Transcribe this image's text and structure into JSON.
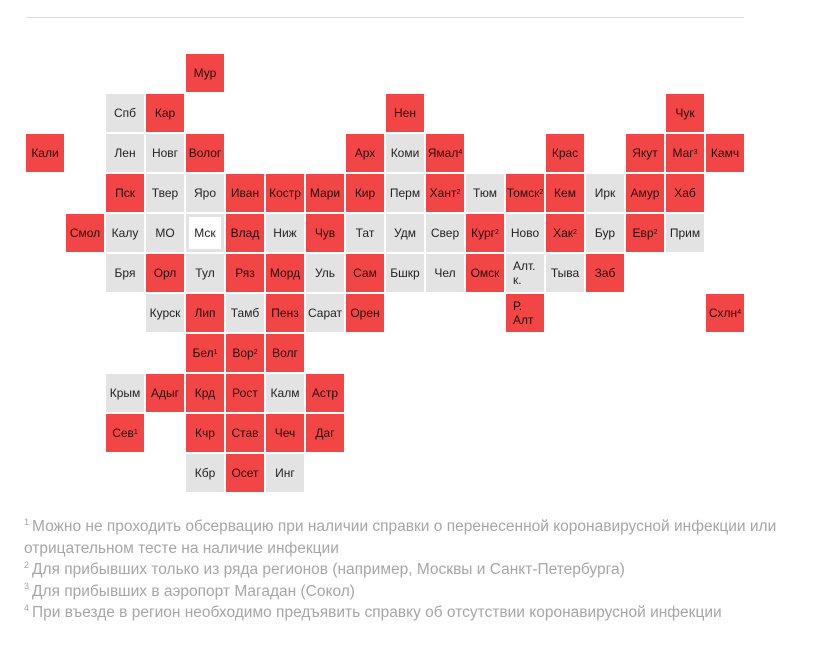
{
  "colors": {
    "restricted": "#f24646",
    "no_restrictions": "#e3e3e3",
    "highlight_outline": "#e3e3e3"
  },
  "regions": [
    {
      "label": "Мур",
      "fn": "",
      "status": "restricted",
      "col": 4,
      "row": 0
    },
    {
      "label": "Спб",
      "fn": "",
      "status": "no_restrictions",
      "col": 2,
      "row": 1
    },
    {
      "label": "Кар",
      "fn": "",
      "status": "restricted",
      "col": 3,
      "row": 1
    },
    {
      "label": "Нен",
      "fn": "",
      "status": "restricted",
      "col": 9,
      "row": 1
    },
    {
      "label": "Чук",
      "fn": "",
      "status": "restricted",
      "col": 16,
      "row": 1
    },
    {
      "label": "Кали",
      "fn": "",
      "status": "restricted",
      "col": 0,
      "row": 2
    },
    {
      "label": "Лен",
      "fn": "",
      "status": "no_restrictions",
      "col": 2,
      "row": 2
    },
    {
      "label": "Новг",
      "fn": "",
      "status": "no_restrictions",
      "col": 3,
      "row": 2
    },
    {
      "label": "Волог",
      "fn": "",
      "status": "restricted",
      "col": 4,
      "row": 2
    },
    {
      "label": "Арх",
      "fn": "",
      "status": "restricted",
      "col": 8,
      "row": 2
    },
    {
      "label": "Коми",
      "fn": "",
      "status": "no_restrictions",
      "col": 9,
      "row": 2
    },
    {
      "label": "Ямал",
      "fn": "4",
      "status": "restricted",
      "col": 10,
      "row": 2
    },
    {
      "label": "Крас",
      "fn": "",
      "status": "restricted",
      "col": 13,
      "row": 2
    },
    {
      "label": "Якут",
      "fn": "",
      "status": "restricted",
      "col": 15,
      "row": 2
    },
    {
      "label": "Маг",
      "fn": "3",
      "status": "restricted",
      "col": 16,
      "row": 2
    },
    {
      "label": "Камч",
      "fn": "",
      "status": "restricted",
      "col": 17,
      "row": 2
    },
    {
      "label": "Пск",
      "fn": "",
      "status": "restricted",
      "col": 2,
      "row": 3
    },
    {
      "label": "Твер",
      "fn": "",
      "status": "no_restrictions",
      "col": 3,
      "row": 3
    },
    {
      "label": "Яро",
      "fn": "",
      "status": "no_restrictions",
      "col": 4,
      "row": 3
    },
    {
      "label": "Иван",
      "fn": "",
      "status": "restricted",
      "col": 5,
      "row": 3
    },
    {
      "label": "Костр",
      "fn": "",
      "status": "restricted",
      "col": 6,
      "row": 3
    },
    {
      "label": "Мари",
      "fn": "",
      "status": "restricted",
      "col": 7,
      "row": 3
    },
    {
      "label": "Кир",
      "fn": "",
      "status": "restricted",
      "col": 8,
      "row": 3
    },
    {
      "label": "Перм",
      "fn": "",
      "status": "no_restrictions",
      "col": 9,
      "row": 3
    },
    {
      "label": "Хант",
      "fn": "2",
      "status": "restricted",
      "col": 10,
      "row": 3
    },
    {
      "label": "Тюм",
      "fn": "",
      "status": "no_restrictions",
      "col": 11,
      "row": 3
    },
    {
      "label": "Томск",
      "fn": "2",
      "status": "restricted",
      "col": 12,
      "row": 3
    },
    {
      "label": "Кем",
      "fn": "",
      "status": "restricted",
      "col": 13,
      "row": 3
    },
    {
      "label": "Ирк",
      "fn": "",
      "status": "no_restrictions",
      "col": 14,
      "row": 3
    },
    {
      "label": "Амур",
      "fn": "",
      "status": "restricted",
      "col": 15,
      "row": 3
    },
    {
      "label": "Хаб",
      "fn": "",
      "status": "restricted",
      "col": 16,
      "row": 3
    },
    {
      "label": "Смол",
      "fn": "",
      "status": "restricted",
      "col": 1,
      "row": 4
    },
    {
      "label": "Калу",
      "fn": "",
      "status": "no_restrictions",
      "col": 2,
      "row": 4
    },
    {
      "label": "МО",
      "fn": "",
      "status": "no_restrictions",
      "col": 3,
      "row": 4
    },
    {
      "label": "Мск",
      "fn": "",
      "status": "highlight",
      "col": 4,
      "row": 4
    },
    {
      "label": "Влад",
      "fn": "",
      "status": "restricted",
      "col": 5,
      "row": 4
    },
    {
      "label": "Ниж",
      "fn": "",
      "status": "no_restrictions",
      "col": 6,
      "row": 4
    },
    {
      "label": "Чув",
      "fn": "",
      "status": "restricted",
      "col": 7,
      "row": 4
    },
    {
      "label": "Тат",
      "fn": "",
      "status": "no_restrictions",
      "col": 8,
      "row": 4
    },
    {
      "label": "Удм",
      "fn": "",
      "status": "no_restrictions",
      "col": 9,
      "row": 4
    },
    {
      "label": "Свер",
      "fn": "",
      "status": "no_restrictions",
      "col": 10,
      "row": 4
    },
    {
      "label": "Кург",
      "fn": "2",
      "status": "restricted",
      "col": 11,
      "row": 4
    },
    {
      "label": "Ново",
      "fn": "",
      "status": "no_restrictions",
      "col": 12,
      "row": 4
    },
    {
      "label": "Хак",
      "fn": "2",
      "status": "restricted",
      "col": 13,
      "row": 4
    },
    {
      "label": "Бур",
      "fn": "",
      "status": "no_restrictions",
      "col": 14,
      "row": 4
    },
    {
      "label": "Евр",
      "fn": "2",
      "status": "restricted",
      "col": 15,
      "row": 4
    },
    {
      "label": "Прим",
      "fn": "",
      "status": "no_restrictions",
      "col": 16,
      "row": 4
    },
    {
      "label": "Бря",
      "fn": "",
      "status": "no_restrictions",
      "col": 2,
      "row": 5
    },
    {
      "label": "Орл",
      "fn": "",
      "status": "restricted",
      "col": 3,
      "row": 5
    },
    {
      "label": "Тул",
      "fn": "",
      "status": "no_restrictions",
      "col": 4,
      "row": 5
    },
    {
      "label": "Ряз",
      "fn": "",
      "status": "restricted",
      "col": 5,
      "row": 5
    },
    {
      "label": "Морд",
      "fn": "",
      "status": "restricted",
      "col": 6,
      "row": 5
    },
    {
      "label": "Уль",
      "fn": "",
      "status": "no_restrictions",
      "col": 7,
      "row": 5
    },
    {
      "label": "Сам",
      "fn": "",
      "status": "restricted",
      "col": 8,
      "row": 5
    },
    {
      "label": "Бшкр",
      "fn": "",
      "status": "no_restrictions",
      "col": 9,
      "row": 5
    },
    {
      "label": "Чел",
      "fn": "",
      "status": "no_restrictions",
      "col": 10,
      "row": 5
    },
    {
      "label": "Омск",
      "fn": "",
      "status": "restricted",
      "col": 11,
      "row": 5
    },
    {
      "label": "Алт. к.",
      "fn": "",
      "status": "no_restrictions",
      "col": 12,
      "row": 5,
      "wrap": true
    },
    {
      "label": "Тыва",
      "fn": "",
      "status": "no_restrictions",
      "col": 13,
      "row": 5
    },
    {
      "label": "Заб",
      "fn": "",
      "status": "restricted",
      "col": 14,
      "row": 5
    },
    {
      "label": "Курск",
      "fn": "",
      "status": "no_restrictions",
      "col": 3,
      "row": 6
    },
    {
      "label": "Лип",
      "fn": "",
      "status": "restricted",
      "col": 4,
      "row": 6
    },
    {
      "label": "Тамб",
      "fn": "",
      "status": "no_restrictions",
      "col": 5,
      "row": 6
    },
    {
      "label": "Пенз",
      "fn": "",
      "status": "restricted",
      "col": 6,
      "row": 6
    },
    {
      "label": "Сарат",
      "fn": "",
      "status": "no_restrictions",
      "col": 7,
      "row": 6
    },
    {
      "label": "Орен",
      "fn": "",
      "status": "restricted",
      "col": 8,
      "row": 6
    },
    {
      "label": "Р. Алт",
      "fn": "",
      "status": "restricted",
      "col": 12,
      "row": 6,
      "wrap": true
    },
    {
      "label": "Схлн",
      "fn": "4",
      "status": "restricted",
      "col": 17,
      "row": 6
    },
    {
      "label": "Бел",
      "fn": "1",
      "status": "restricted",
      "col": 4,
      "row": 7
    },
    {
      "label": "Вор",
      "fn": "2",
      "status": "restricted",
      "col": 5,
      "row": 7
    },
    {
      "label": "Волг",
      "fn": "",
      "status": "restricted",
      "col": 6,
      "row": 7
    },
    {
      "label": "Крым",
      "fn": "",
      "status": "no_restrictions",
      "col": 2,
      "row": 8
    },
    {
      "label": "Адыг",
      "fn": "",
      "status": "restricted",
      "col": 3,
      "row": 8
    },
    {
      "label": "Крд",
      "fn": "",
      "status": "restricted",
      "col": 4,
      "row": 8
    },
    {
      "label": "Рост",
      "fn": "",
      "status": "restricted",
      "col": 5,
      "row": 8
    },
    {
      "label": "Калм",
      "fn": "",
      "status": "no_restrictions",
      "col": 6,
      "row": 8
    },
    {
      "label": "Астр",
      "fn": "",
      "status": "restricted",
      "col": 7,
      "row": 8
    },
    {
      "label": "Сев",
      "fn": "1",
      "status": "restricted",
      "col": 2,
      "row": 9
    },
    {
      "label": "Кчр",
      "fn": "",
      "status": "restricted",
      "col": 4,
      "row": 9
    },
    {
      "label": "Став",
      "fn": "",
      "status": "restricted",
      "col": 5,
      "row": 9
    },
    {
      "label": "Чеч",
      "fn": "",
      "status": "restricted",
      "col": 6,
      "row": 9
    },
    {
      "label": "Даг",
      "fn": "",
      "status": "restricted",
      "col": 7,
      "row": 9
    },
    {
      "label": "Кбр",
      "fn": "",
      "status": "no_restrictions",
      "col": 4,
      "row": 10
    },
    {
      "label": "Осет",
      "fn": "",
      "status": "restricted",
      "col": 5,
      "row": 10
    },
    {
      "label": "Инг",
      "fn": "",
      "status": "no_restrictions",
      "col": 6,
      "row": 10
    }
  ],
  "footnotes": [
    {
      "mark": "1",
      "text": "Можно не проходить обсервацию при наличии справки о перенесенной коронавирусной инфекции или отрицательном тесте на наличие инфекции"
    },
    {
      "mark": "2",
      "text": "Для прибывших только из ряда регионов (например, Москвы и Санкт-Петербурга)"
    },
    {
      "mark": "3",
      "text": "Для прибывших в аэропорт Магадан (Сокол)"
    },
    {
      "mark": "4",
      "text": "При въезде в регион необходимо предъявить справку об отсутствии коронавирусной инфекции"
    }
  ]
}
